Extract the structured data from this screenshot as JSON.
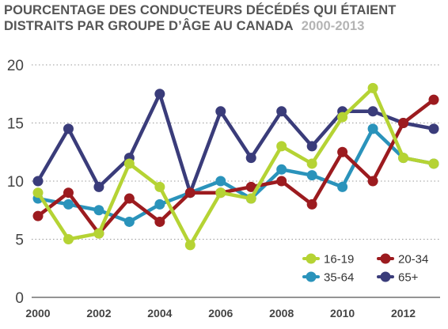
{
  "chart_data": {
    "type": "line",
    "title_line1": "POURCENTAGE DES CONDUCTEURS DÉCÉDÉS QUI ÉTAIENT",
    "title_line2": "DISTRAITS PAR GROUPE D’ÂGE AU CANADA",
    "subtitle": "2000-2013",
    "x": [
      2000,
      2001,
      2002,
      2003,
      2004,
      2005,
      2006,
      2007,
      2008,
      2009,
      2010,
      2011,
      2012,
      2013
    ],
    "x_tick_labels": [
      "2000",
      "2002",
      "2004",
      "2006",
      "2008",
      "2010",
      "2012"
    ],
    "x_tick_values": [
      2000,
      2002,
      2004,
      2006,
      2008,
      2010,
      2012
    ],
    "xlim": [
      2000,
      2013
    ],
    "y_tick_labels": [
      "0",
      "5",
      "10",
      "15",
      "20"
    ],
    "y_tick_values": [
      0,
      5,
      10,
      15,
      20
    ],
    "ylim": [
      0,
      20
    ],
    "grid": "horizontal-dotted",
    "legend_position": "bottom-right",
    "series": [
      {
        "name": "16-19",
        "color": "#b5d334",
        "values": [
          9,
          5,
          5.5,
          11.5,
          9.5,
          4.5,
          9,
          8.5,
          13,
          11.5,
          15.5,
          18,
          12,
          11.5
        ]
      },
      {
        "name": "20-34",
        "color": "#9c1b1f",
        "values": [
          7,
          9,
          5.5,
          8.5,
          6.5,
          9,
          9,
          9.5,
          10,
          8,
          12.5,
          10,
          15,
          17
        ]
      },
      {
        "name": "35-64",
        "color": "#2a93bb",
        "values": [
          8.5,
          8,
          7.5,
          6.5,
          8,
          9,
          10,
          8.5,
          11,
          10.5,
          9.5,
          14.5,
          12,
          11.5
        ]
      },
      {
        "name": "65+",
        "color": "#3a3c7a",
        "values": [
          10,
          14.5,
          9.5,
          12,
          17.5,
          9,
          16,
          12,
          16,
          13,
          16,
          16,
          15,
          14.5
        ]
      }
    ],
    "draw_order": [
      "65+",
      "35-64",
      "20-34",
      "16-19"
    ]
  }
}
